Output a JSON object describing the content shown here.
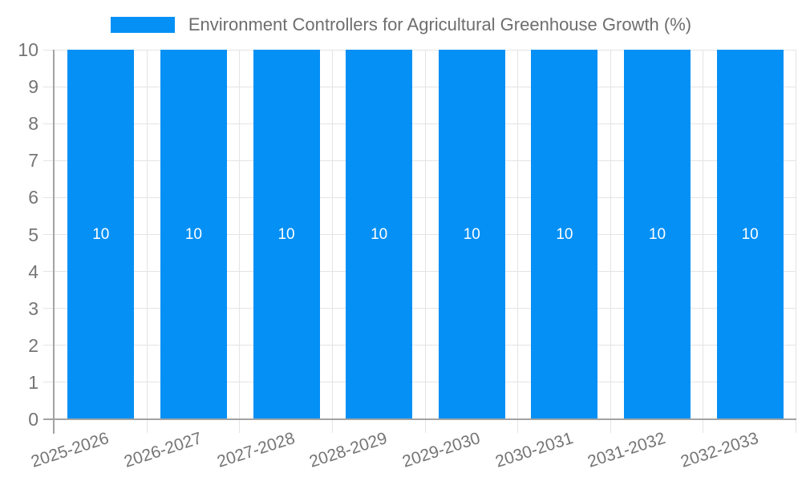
{
  "chart_data": {
    "type": "bar",
    "title": "Environment Controllers for Agricultural Greenhouse Growth (%)",
    "categories": [
      "2025-2026",
      "2026-2027",
      "2027-2028",
      "2028-2029",
      "2029-2030",
      "2030-2031",
      "2031-2032",
      "2032-2033"
    ],
    "values": [
      10,
      10,
      10,
      10,
      10,
      10,
      10,
      10
    ],
    "bar_value_labels": [
      "10",
      "10",
      "10",
      "10",
      "10",
      "10",
      "10",
      "10"
    ],
    "xlabel": "",
    "ylabel": "",
    "ylim": [
      0,
      10
    ],
    "yticks": [
      0,
      1,
      2,
      3,
      4,
      5,
      6,
      7,
      8,
      9,
      10
    ],
    "grid": "on",
    "legend": {
      "position": "top",
      "entries": [
        "Environment Controllers for Agricultural Greenhouse Growth (%)"
      ]
    },
    "x_tick_rotation_deg": -18,
    "colors": {
      "bar": "#0590F5",
      "grid": "#e4e4e4",
      "axis": "#a3a3a3",
      "tick_label": "#757575",
      "legend_text": "#6e6e6e",
      "value_label": "#ffffff"
    }
  }
}
